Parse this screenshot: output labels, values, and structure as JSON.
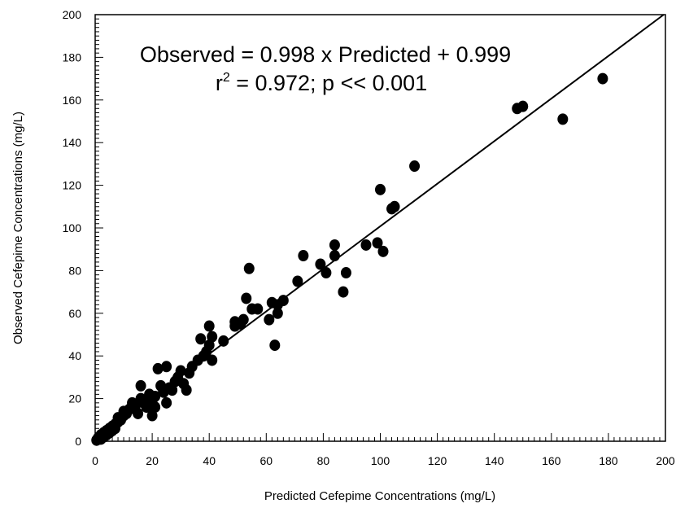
{
  "chart_data": {
    "type": "scatter",
    "title": "",
    "xlabel": "Predicted Cefepime Concentrations (mg/L)",
    "ylabel": "Observed Cefepime Concentrations (mg/L)",
    "xlim": [
      0,
      200
    ],
    "ylim": [
      0,
      200
    ],
    "x_ticks": [
      0,
      20,
      40,
      60,
      80,
      100,
      120,
      140,
      160,
      180,
      200
    ],
    "y_ticks": [
      0,
      20,
      40,
      60,
      80,
      100,
      120,
      140,
      160,
      180,
      200
    ],
    "grid": false,
    "annotation_line1": "Observed = 0.998 x Predicted + 0.999",
    "annotation_r": "r",
    "annotation_sup": "2",
    "annotation_rest": " = 0.972; p << 0.001",
    "regression": {
      "slope": 0.998,
      "intercept": 0.999
    },
    "points": [
      [
        0.5,
        0.5
      ],
      [
        1,
        1.5
      ],
      [
        1.5,
        2
      ],
      [
        2,
        1
      ],
      [
        2,
        3
      ],
      [
        3,
        2
      ],
      [
        3,
        4
      ],
      [
        4,
        3
      ],
      [
        4,
        5
      ],
      [
        5,
        4
      ],
      [
        5,
        6
      ],
      [
        6,
        5
      ],
      [
        6,
        7
      ],
      [
        7,
        8
      ],
      [
        7,
        6
      ],
      [
        8,
        9
      ],
      [
        8,
        11
      ],
      [
        9,
        10
      ],
      [
        10,
        12
      ],
      [
        10,
        14
      ],
      [
        11,
        13
      ],
      [
        12,
        15
      ],
      [
        13,
        18
      ],
      [
        14,
        16
      ],
      [
        15,
        13
      ],
      [
        16,
        20
      ],
      [
        16,
        26
      ],
      [
        17,
        18
      ],
      [
        18,
        16
      ],
      [
        19,
        22
      ],
      [
        20,
        12
      ],
      [
        20,
        19
      ],
      [
        21,
        16
      ],
      [
        21,
        21
      ],
      [
        22,
        34
      ],
      [
        23,
        26
      ],
      [
        24,
        23
      ],
      [
        25,
        18
      ],
      [
        25,
        35
      ],
      [
        26,
        25
      ],
      [
        27,
        24
      ],
      [
        28,
        28
      ],
      [
        29,
        30
      ],
      [
        30,
        33
      ],
      [
        31,
        27
      ],
      [
        32,
        24
      ],
      [
        33,
        32
      ],
      [
        34,
        35
      ],
      [
        36,
        38
      ],
      [
        37,
        48
      ],
      [
        38,
        40
      ],
      [
        39,
        42
      ],
      [
        40,
        45
      ],
      [
        40,
        54
      ],
      [
        41,
        38
      ],
      [
        41,
        49
      ],
      [
        45,
        47
      ],
      [
        49,
        54
      ],
      [
        49,
        56
      ],
      [
        51,
        55
      ],
      [
        52,
        57
      ],
      [
        53,
        67
      ],
      [
        54,
        81
      ],
      [
        55,
        62
      ],
      [
        57,
        62
      ],
      [
        61,
        57
      ],
      [
        62,
        65
      ],
      [
        63,
        45
      ],
      [
        64,
        60
      ],
      [
        64,
        64
      ],
      [
        66,
        66
      ],
      [
        71,
        75
      ],
      [
        73,
        87
      ],
      [
        79,
        83
      ],
      [
        81,
        79
      ],
      [
        84,
        87
      ],
      [
        84,
        92
      ],
      [
        87,
        70
      ],
      [
        88,
        79
      ],
      [
        95,
        92
      ],
      [
        99,
        93
      ],
      [
        100,
        118
      ],
      [
        101,
        89
      ],
      [
        104,
        109
      ],
      [
        105,
        110
      ],
      [
        112,
        129
      ],
      [
        148,
        156
      ],
      [
        150,
        157
      ],
      [
        164,
        151
      ],
      [
        178,
        170
      ]
    ]
  }
}
